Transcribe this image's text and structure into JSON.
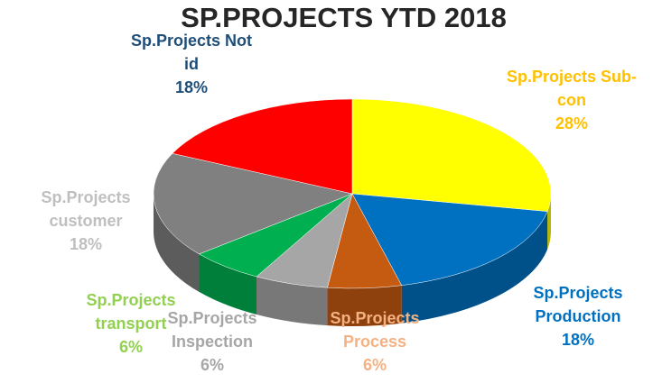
{
  "chart_data": {
    "type": "pie3d",
    "title": "SP.PROJECTS YTD 2018",
    "categories": [
      "Sp.Projects Sub-con",
      "Sp.Projects Production",
      "Sp.Projects Process",
      "Sp.Projects Inspection",
      "Sp.Projects transport",
      "Sp.Projects customer",
      "Sp.Projects Not id"
    ],
    "values": [
      28,
      18,
      6,
      6,
      6,
      18,
      18
    ],
    "value_labels": [
      "28%",
      "18%",
      "6%",
      "6%",
      "6%",
      "18%",
      "18%"
    ],
    "colors": [
      "#ffff00",
      "#0070c0",
      "#c55a11",
      "#a6a6a6",
      "#00b050",
      "#808080",
      "#ff0000"
    ],
    "label_colors": [
      "#ffc000",
      "#0070c0",
      "#f4b183",
      "#a6a6a6",
      "#92d050",
      "#bfbfbf",
      "#1f4e79"
    ]
  }
}
